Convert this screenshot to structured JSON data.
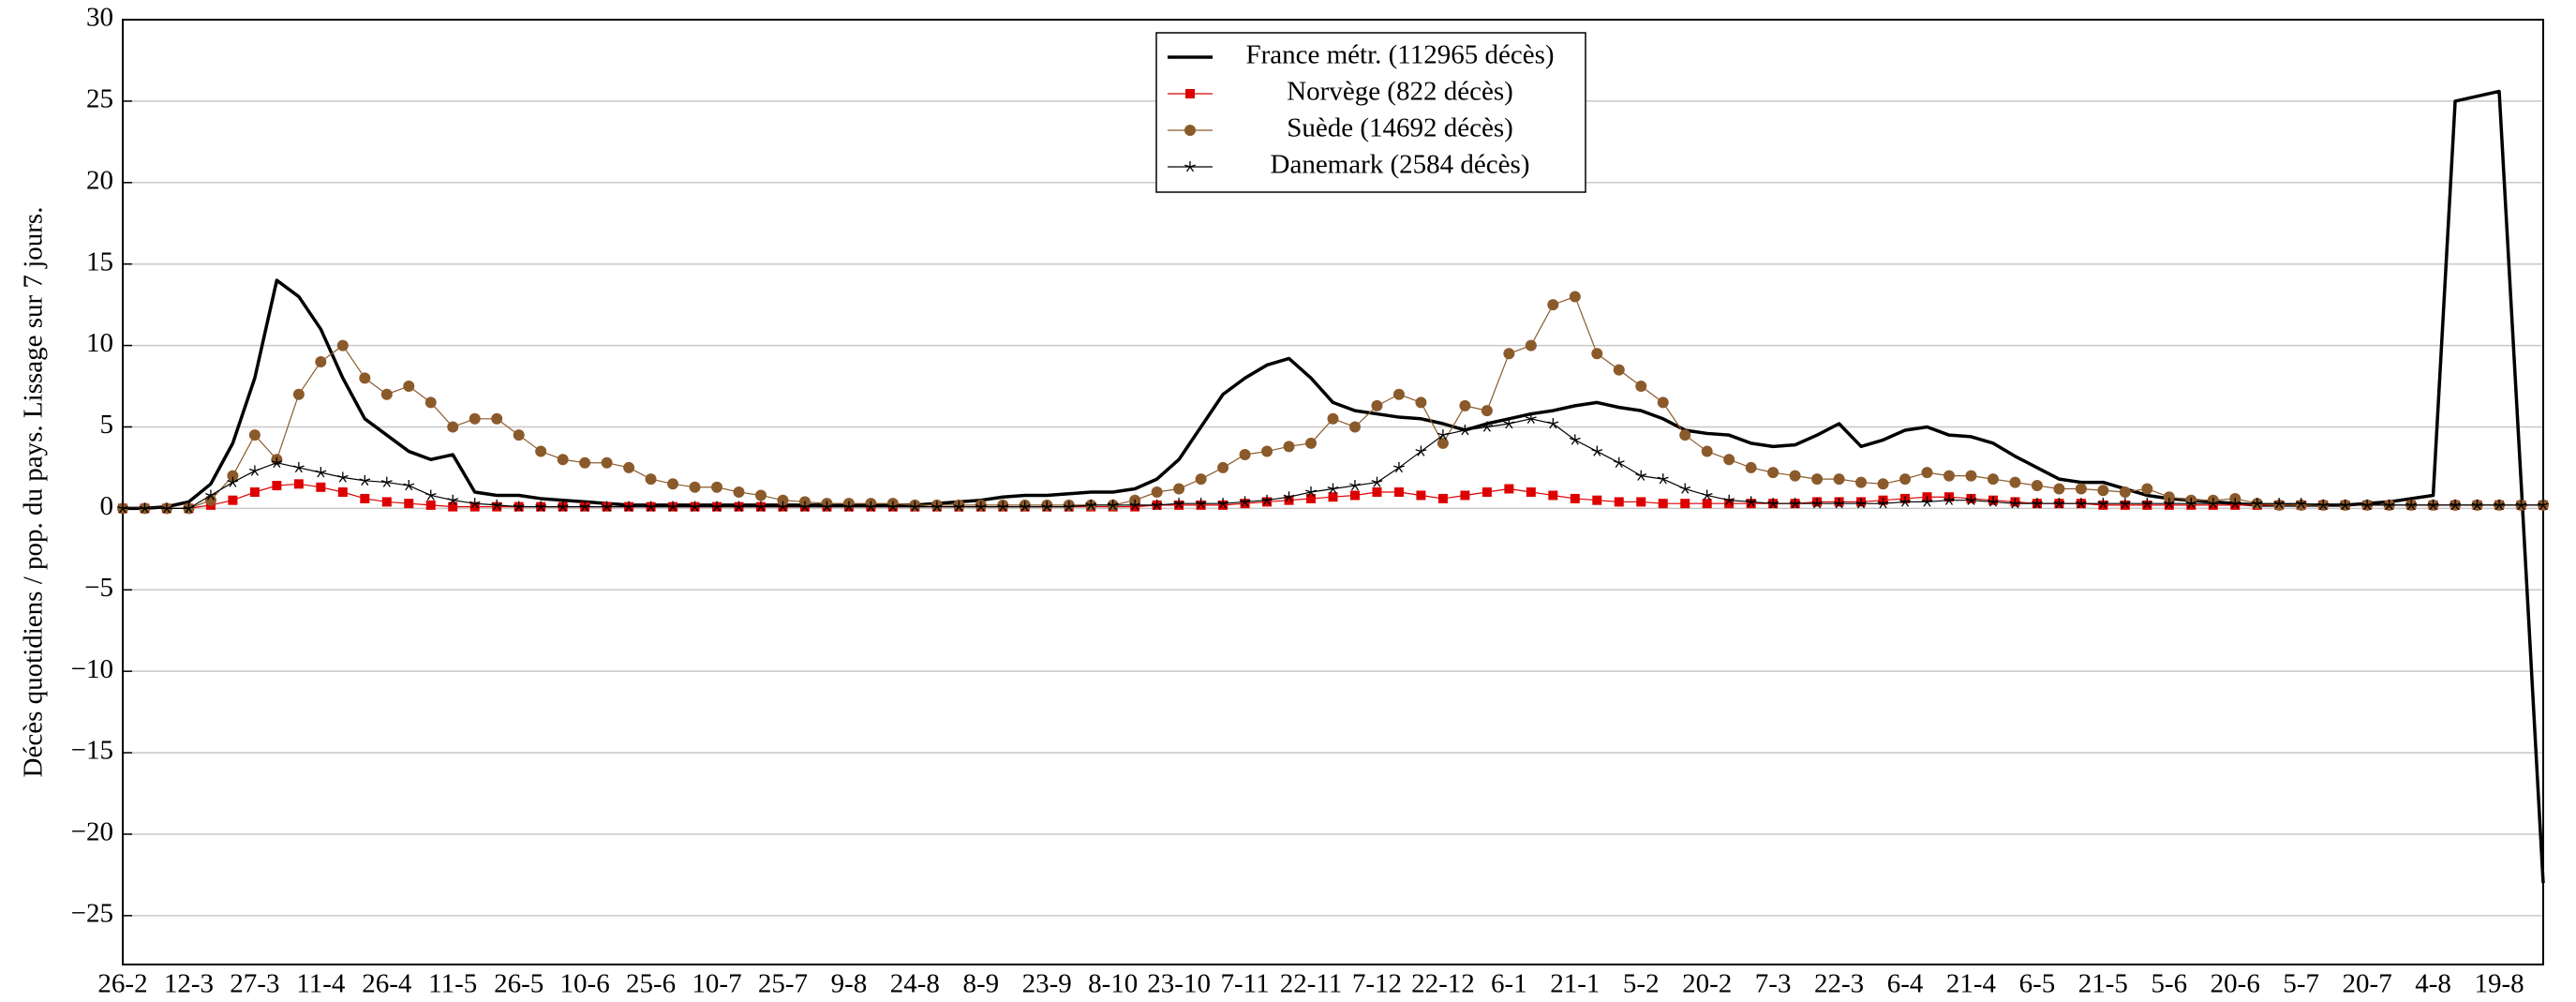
{
  "chart_data": {
    "type": "line",
    "ylabel": "Décès quotidiens / pop. du pays. Lissage sur 7 jours.",
    "categories": [
      "26-2",
      null,
      null,
      "12-3",
      null,
      null,
      "27-3",
      null,
      null,
      "11-4",
      null,
      null,
      "26-4",
      null,
      null,
      "11-5",
      null,
      null,
      "26-5",
      null,
      null,
      "10-6",
      null,
      null,
      "25-6",
      null,
      null,
      "10-7",
      null,
      null,
      "25-7",
      null,
      null,
      "9-8",
      null,
      null,
      "24-8",
      null,
      null,
      "8-9",
      null,
      null,
      "23-9",
      null,
      null,
      "8-10",
      null,
      null,
      "23-10",
      null,
      null,
      "7-11",
      null,
      null,
      "22-11",
      null,
      null,
      "7-12",
      null,
      null,
      "22-12",
      null,
      null,
      "6-1",
      null,
      null,
      "21-1",
      null,
      null,
      "5-2",
      null,
      null,
      "20-2",
      null,
      null,
      "7-3",
      null,
      null,
      "22-3",
      null,
      null,
      "6-4",
      null,
      null,
      "21-4",
      null,
      null,
      "6-5",
      null,
      null,
      "21-5",
      null,
      null,
      "5-6",
      null,
      null,
      "20-6",
      null,
      null,
      "5-7",
      null,
      null,
      "20-7",
      null,
      null,
      "4-8",
      null,
      null,
      "19-8",
      null,
      null
    ],
    "series": [
      {
        "name": "France métr. (112965 décès)",
        "color": "#000000",
        "marker": "none",
        "values": [
          0,
          0,
          0.1,
          0.4,
          1.5,
          4,
          8,
          14,
          13,
          11,
          8,
          5.5,
          4.5,
          3.5,
          3,
          3.3,
          1,
          0.8,
          0.8,
          0.6,
          0.5,
          0.4,
          0.3,
          0.2,
          0.2,
          0.2,
          0.2,
          0.2,
          0.2,
          0.2,
          0.2,
          0.2,
          0.2,
          0.2,
          0.2,
          0.2,
          0.2,
          0.3,
          0.4,
          0.5,
          0.7,
          0.8,
          0.8,
          0.9,
          1,
          1,
          1.2,
          1.8,
          3,
          5,
          7,
          8,
          8.8,
          9.2,
          8,
          6.5,
          6,
          5.8,
          5.6,
          5.5,
          5.2,
          4.8,
          5.2,
          5.5,
          5.8,
          6,
          6.3,
          6.5,
          6.2,
          6,
          5.5,
          4.8,
          4.6,
          4.5,
          4,
          3.8,
          3.9,
          4.5,
          5.2,
          3.8,
          4.2,
          4.8,
          5,
          4.5,
          4.4,
          4,
          3.2,
          2.5,
          1.8,
          1.6,
          1.6,
          1.2,
          0.8,
          0.6,
          0.5,
          0.4,
          0.3,
          0.2,
          0.2,
          0.2,
          0.2,
          0.2,
          0.3,
          0.4,
          0.6,
          0.8,
          25,
          25.3,
          25.6,
          1.5,
          -23
        ]
      },
      {
        "name": "Norvège (822 décès)",
        "color": "#dd0000",
        "marker": "square",
        "values": [
          0,
          0,
          0,
          0,
          0.2,
          0.5,
          1,
          1.4,
          1.5,
          1.3,
          1,
          0.6,
          0.4,
          0.3,
          0.2,
          0.1,
          0.1,
          0.1,
          0.1,
          0.1,
          0.1,
          0.1,
          0.1,
          0.1,
          0.1,
          0.1,
          0.1,
          0.1,
          0.1,
          0.1,
          0.1,
          0.1,
          0.1,
          0.1,
          0.1,
          0.1,
          0.1,
          0.1,
          0.1,
          0.1,
          0.1,
          0.1,
          0.1,
          0.1,
          0.1,
          0.1,
          0.1,
          0.2,
          0.2,
          0.2,
          0.2,
          0.3,
          0.4,
          0.5,
          0.6,
          0.7,
          0.8,
          1,
          1,
          0.8,
          0.6,
          0.8,
          1,
          1.2,
          1,
          0.8,
          0.6,
          0.5,
          0.4,
          0.4,
          0.3,
          0.3,
          0.3,
          0.3,
          0.3,
          0.3,
          0.3,
          0.4,
          0.4,
          0.4,
          0.5,
          0.6,
          0.7,
          0.7,
          0.6,
          0.5,
          0.4,
          0.3,
          0.3,
          0.3,
          0.2,
          0.2,
          0.2,
          0.2,
          0.2,
          0.2,
          0.2,
          0.2,
          0.2,
          0.2,
          0.2,
          0.2,
          0.2,
          0.2,
          0.2,
          0.2,
          0.2,
          0.2,
          0.2,
          0.2,
          0.2
        ]
      },
      {
        "name": "Suède (14692 décès)",
        "color": "#8b5a2b",
        "marker": "circle",
        "values": [
          0,
          0,
          0,
          0,
          0.5,
          2,
          4.5,
          3,
          7,
          9,
          10,
          8,
          7,
          7.5,
          6.5,
          5,
          5.5,
          5.5,
          4.5,
          3.5,
          3,
          2.8,
          2.8,
          2.5,
          1.8,
          1.5,
          1.3,
          1.3,
          1,
          0.8,
          0.5,
          0.4,
          0.3,
          0.3,
          0.3,
          0.3,
          0.2,
          0.2,
          0.2,
          0.2,
          0.2,
          0.2,
          0.2,
          0.2,
          0.2,
          0.2,
          0.5,
          1,
          1.2,
          1.8,
          2.5,
          3.3,
          3.5,
          3.8,
          4,
          5.5,
          5,
          6.3,
          7,
          6.5,
          4,
          6.3,
          6,
          9.5,
          10,
          12.5,
          13,
          9.5,
          8.5,
          7.5,
          6.5,
          4.5,
          3.5,
          3,
          2.5,
          2.2,
          2,
          1.8,
          1.8,
          1.6,
          1.5,
          1.8,
          2.2,
          2,
          2,
          1.8,
          1.6,
          1.4,
          1.2,
          1.2,
          1.1,
          1,
          1.2,
          0.7,
          0.5,
          0.5,
          0.6,
          0.3,
          0.2,
          0.2,
          0.2,
          0.2,
          0.2,
          0.2,
          0.2,
          0.2,
          0.2,
          0.2,
          0.2,
          0.2,
          0.2
        ]
      },
      {
        "name": "Danemark (2584 décès)",
        "color": "#000000",
        "marker": "star",
        "values": [
          0,
          0,
          0,
          0,
          0.8,
          1.6,
          2.3,
          2.8,
          2.5,
          2.2,
          1.9,
          1.7,
          1.6,
          1.4,
          0.8,
          0.5,
          0.3,
          0.2,
          0.1,
          0.1,
          0.1,
          0.1,
          0.1,
          0.1,
          0.1,
          0.1,
          0.1,
          0.1,
          0.1,
          0.1,
          0.1,
          0.1,
          0.1,
          0.1,
          0.1,
          0.1,
          0.1,
          0.1,
          0.1,
          0.1,
          0.1,
          0.1,
          0.1,
          0.1,
          0.2,
          0.2,
          0.2,
          0.2,
          0.3,
          0.3,
          0.3,
          0.4,
          0.5,
          0.7,
          1,
          1.2,
          1.4,
          1.6,
          2.5,
          3.5,
          4.5,
          4.8,
          5,
          5.2,
          5.5,
          5.2,
          4.2,
          3.5,
          2.8,
          2,
          1.8,
          1.2,
          0.8,
          0.5,
          0.4,
          0.3,
          0.3,
          0.3,
          0.3,
          0.3,
          0.3,
          0.4,
          0.4,
          0.5,
          0.5,
          0.4,
          0.3,
          0.3,
          0.3,
          0.3,
          0.3,
          0.3,
          0.3,
          0.3,
          0.3,
          0.3,
          0.3,
          0.3,
          0.3,
          0.3,
          0.2,
          0.2,
          0.2,
          0.2,
          0.2,
          0.2,
          0.2,
          0.2,
          0.2,
          0.2,
          0.2
        ]
      }
    ],
    "ylim": [
      -28,
      30
    ],
    "yticks": [
      {
        "value": -25,
        "label": "−25"
      },
      {
        "value": -20,
        "label": "−20"
      },
      {
        "value": -15,
        "label": "−15"
      },
      {
        "value": -10,
        "label": "−10"
      },
      {
        "value": -5,
        "label": "−5"
      },
      0,
      5,
      10,
      15,
      20,
      25,
      30
    ],
    "grid": true,
    "legend": "top"
  }
}
